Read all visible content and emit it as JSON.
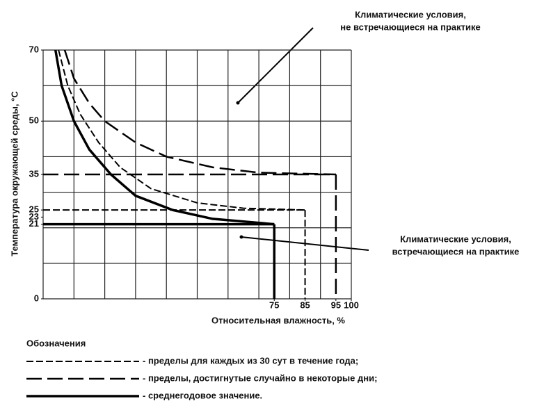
{
  "chart_data": {
    "type": "line",
    "xlabel": "Относительная влажность, %",
    "ylabel": "Температура окружающей среды, °C",
    "xlim": [
      0,
      100
    ],
    "ylim": [
      0,
      70
    ],
    "xticks": [
      75,
      85,
      95,
      100
    ],
    "yticks": [
      0,
      21,
      23,
      25,
      35,
      50,
      70
    ],
    "grid": true,
    "legend_title": "Обозначения",
    "series": [
      {
        "name": "- пределы для каждых из 30 сут в течение года;",
        "color": "#000",
        "style": "dashed",
        "x": [
          5,
          8,
          12,
          18,
          25,
          35,
          50,
          65,
          85
        ],
        "values": [
          70,
          60,
          52,
          44,
          37,
          31,
          27,
          25.5,
          25
        ],
        "limit": {
          "x": 85,
          "y": 25
        }
      },
      {
        "name": "- пределы, достигнутые случайно в некоторые дни;",
        "color": "#000",
        "style": "long-dashed",
        "x": [
          7,
          10,
          15,
          20,
          30,
          40,
          55,
          70,
          95
        ],
        "values": [
          70,
          62,
          55,
          50,
          44,
          40,
          37,
          35.5,
          35
        ],
        "limit": {
          "x": 95,
          "y": 35
        }
      },
      {
        "name": "- среднегодовое значение.",
        "color": "#000",
        "style": "solid",
        "x": [
          4,
          6,
          10,
          15,
          22,
          30,
          42,
          55,
          75
        ],
        "values": [
          70,
          60,
          50,
          42,
          35,
          29,
          25,
          22.5,
          21
        ],
        "limit": {
          "x": 75,
          "y": 21
        }
      }
    ],
    "annotations": [
      {
        "text": "Климатические условия,",
        "text2": "не встречающиеся на практике"
      },
      {
        "text": "Климатические условия,",
        "text2": "встречающиеся на практике"
      }
    ]
  }
}
